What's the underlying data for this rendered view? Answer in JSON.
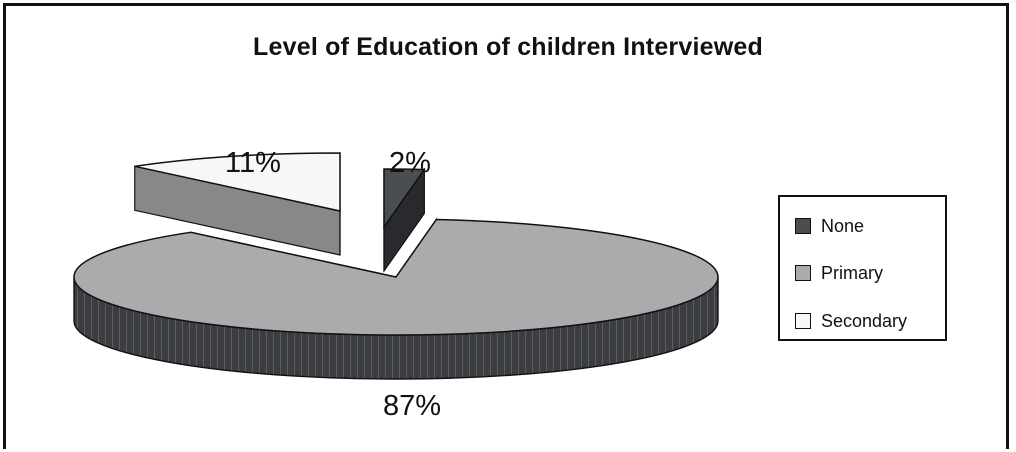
{
  "chart_data": {
    "type": "pie",
    "title": "Level of Education of children Interviewed",
    "categories": [
      "None",
      "Primary",
      "Secondary"
    ],
    "values": [
      2,
      87,
      11
    ],
    "data_labels": [
      "2%",
      "87%",
      "11%"
    ],
    "three_d": true,
    "exploded": true,
    "legend_position": "right",
    "colors": {
      "None": "#4a4d52",
      "Primary": "#a9abad",
      "Secondary": "#f7f7f7"
    }
  }
}
